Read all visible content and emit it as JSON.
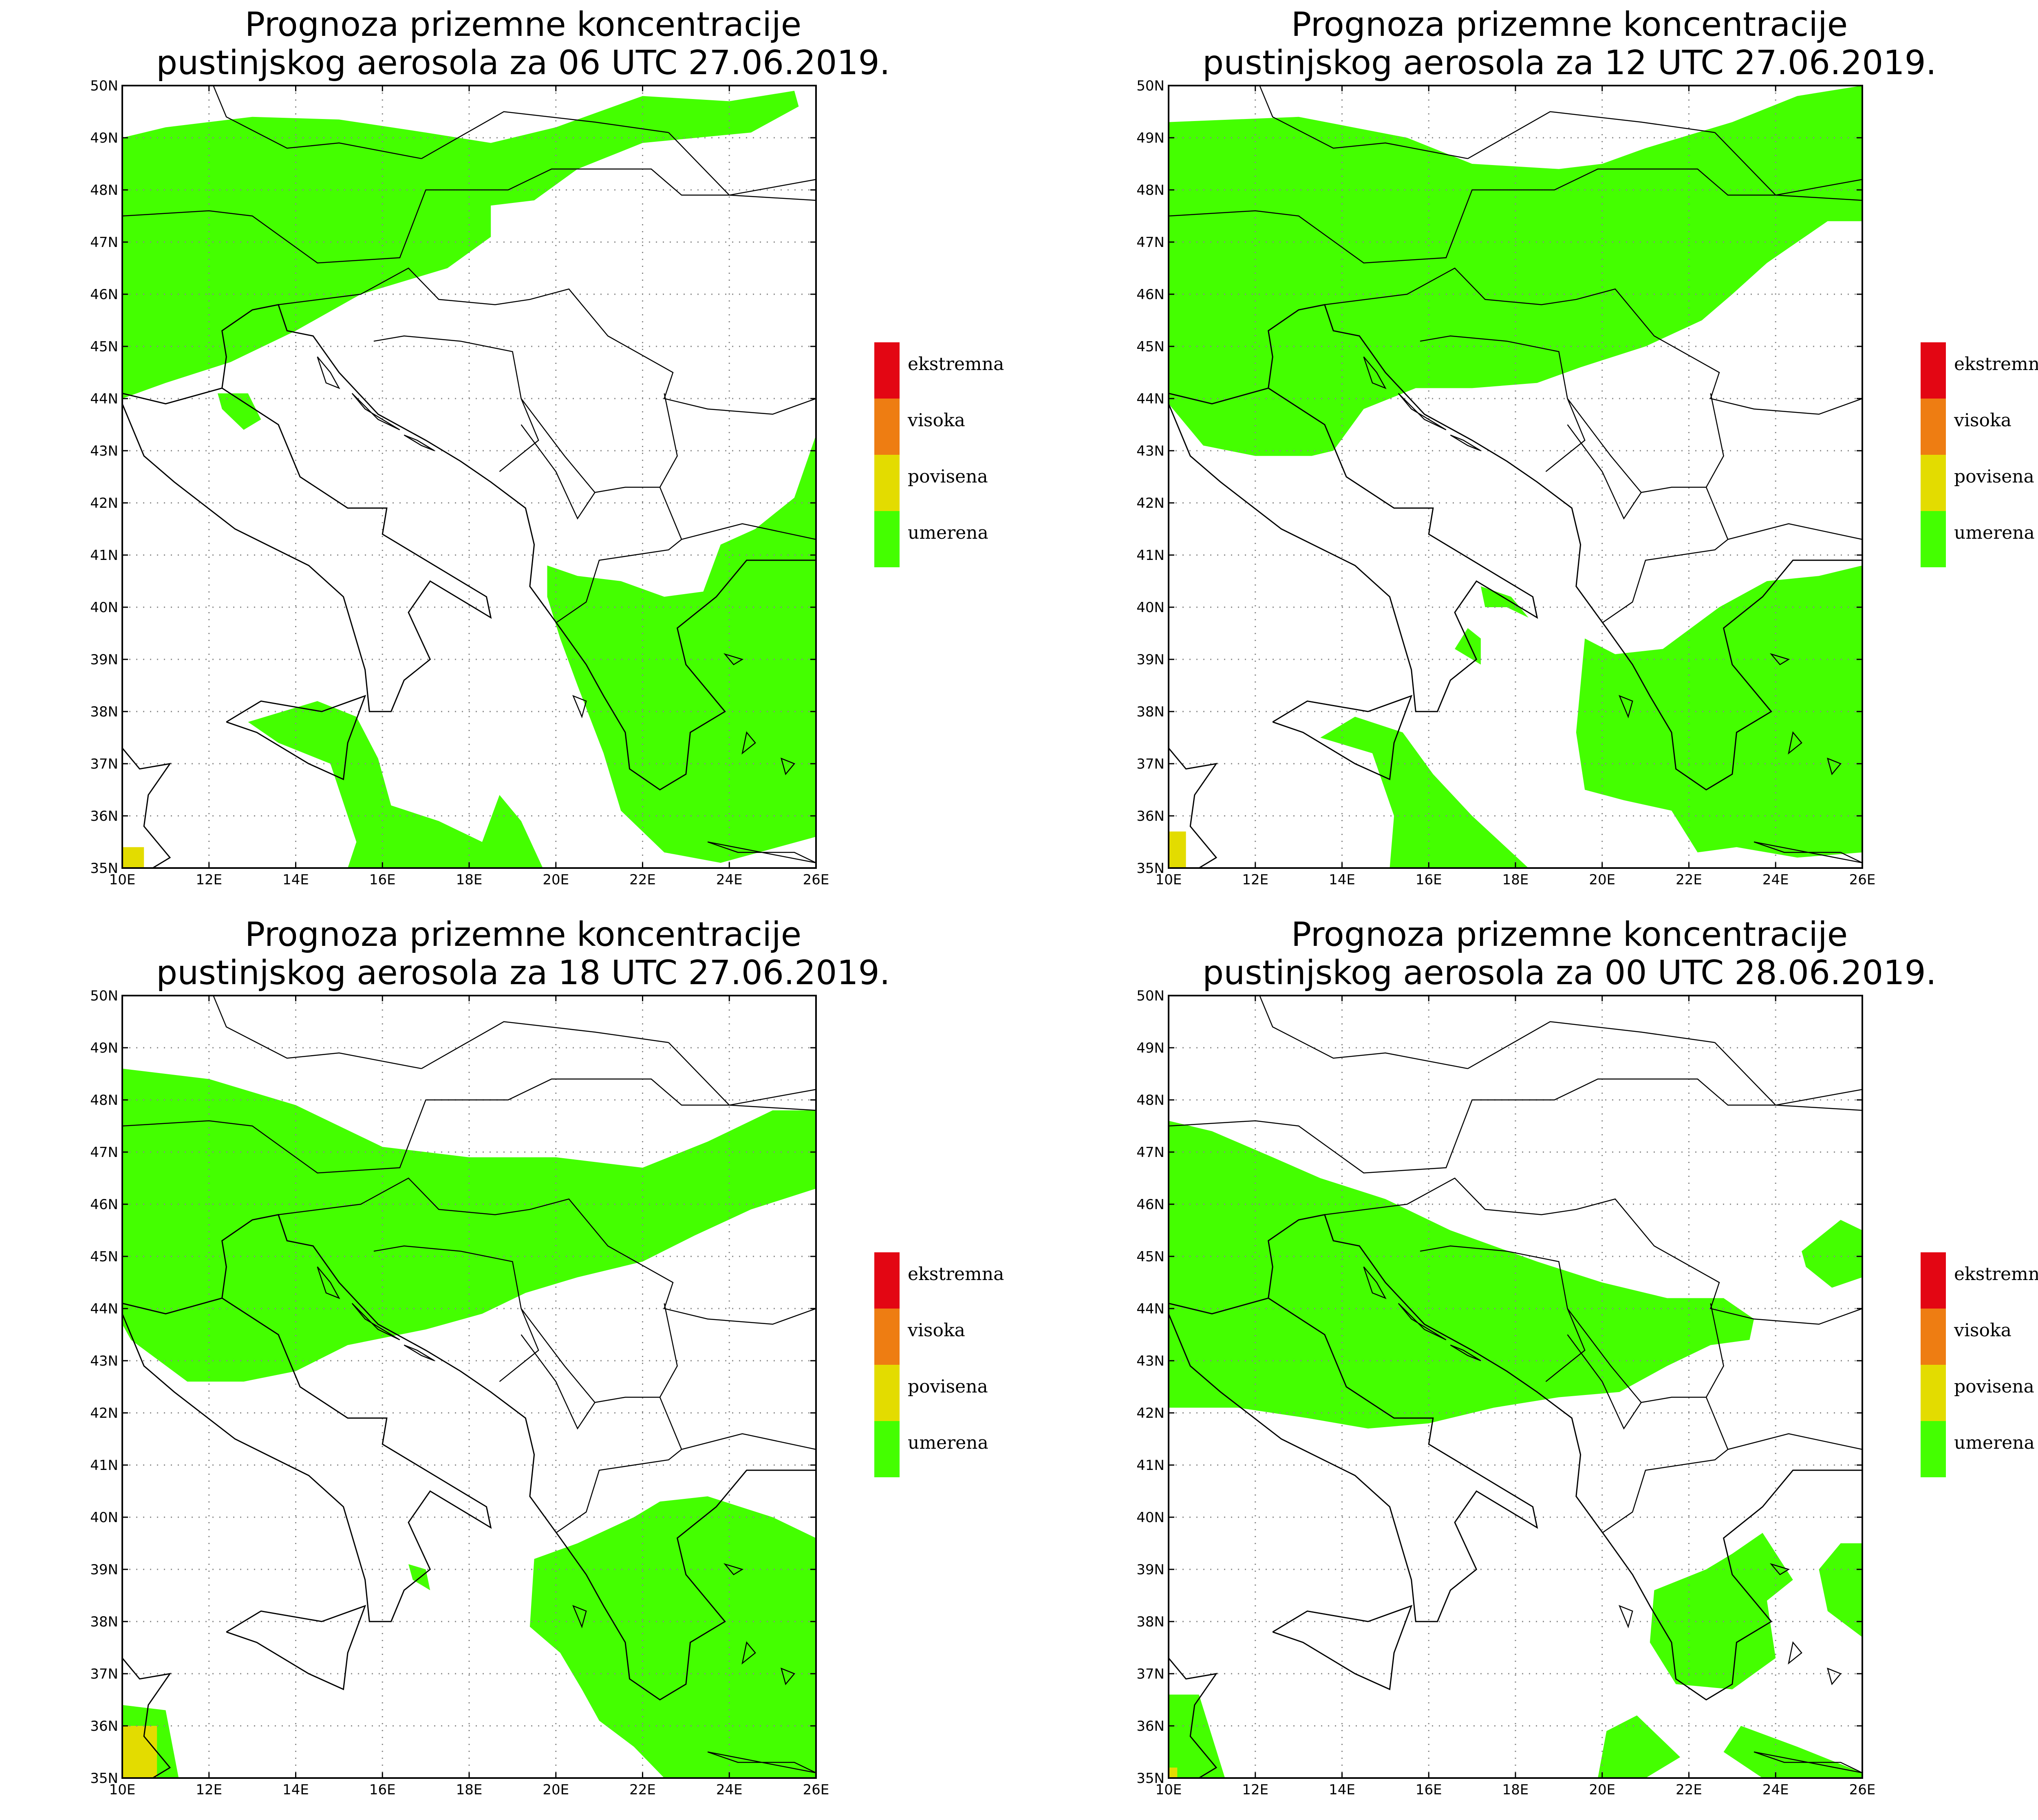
{
  "title_line1": "Prognoza prizemne koncentracije",
  "panels": [
    {
      "title_line2": "pustinjskog aerosola za 06 UTC 27.06.2019."
    },
    {
      "title_line2": "pustinjskog aerosola za 12 UTC 27.06.2019."
    },
    {
      "title_line2": "pustinjskog aerosola za 18 UTC 27.06.2019."
    },
    {
      "title_line2": "pustinjskog aerosola za 00 UTC 28.06.2019."
    }
  ],
  "legend": [
    {
      "label": "ekstremna",
      "color": "#e30613"
    },
    {
      "label": "visoka",
      "color": "#ee7d12"
    },
    {
      "label": "povisena",
      "color": "#e3dc00"
    },
    {
      "label": "umerena",
      "color": "#44ff00"
    }
  ],
  "lat_labels": [
    "50N",
    "49N",
    "48N",
    "47N",
    "46N",
    "45N",
    "44N",
    "43N",
    "42N",
    "41N",
    "40N",
    "39N",
    "38N",
    "37N",
    "36N",
    "35N"
  ],
  "lon_labels": [
    "10E",
    "12E",
    "14E",
    "16E",
    "18E",
    "20E",
    "22E",
    "24E",
    "26E"
  ],
  "colors": {
    "umerena": "#44ff00",
    "povisena": "#e3dc00",
    "border": "#000000",
    "grid": "#888888"
  },
  "map": {
    "extent_lon": [
      10,
      26
    ],
    "extent_lat": [
      35,
      50
    ],
    "gridlines": "dotted"
  }
}
